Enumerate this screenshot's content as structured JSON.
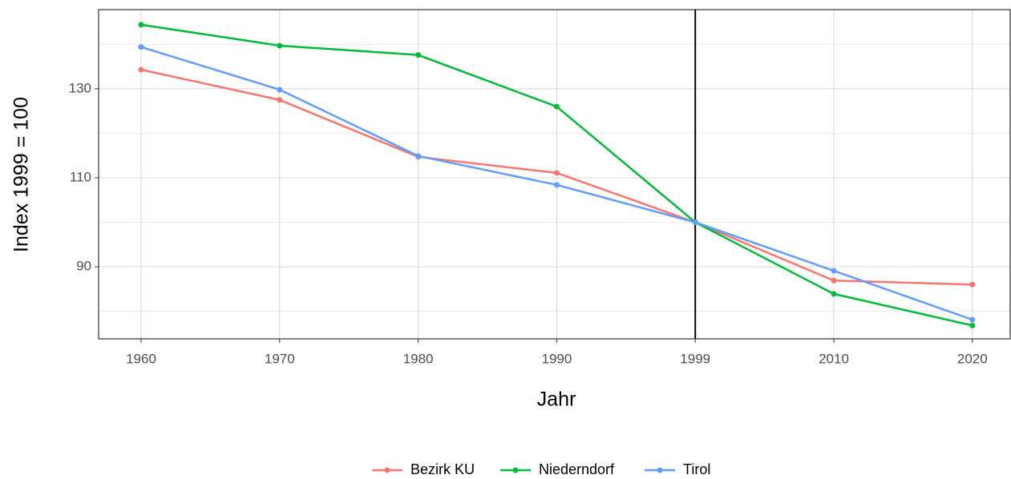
{
  "chart_data": {
    "type": "line",
    "x_label": "Jahr",
    "y_label": "Index 1999 = 100",
    "categories": [
      "1960",
      "1970",
      "1980",
      "1990",
      "1999",
      "2010",
      "2020"
    ],
    "series": [
      {
        "name": "Bezirk KU",
        "color": "#f8766d",
        "values": [
          134.3,
          127.5,
          114.7,
          111.1,
          100,
          86.9,
          86.0
        ]
      },
      {
        "name": "Niederndorf",
        "color": "#00ba38",
        "values": [
          144.4,
          139.7,
          137.6,
          126.0,
          100,
          83.9,
          76.8
        ]
      },
      {
        "name": "Tirol",
        "color": "#619cff",
        "values": [
          139.4,
          129.8,
          114.9,
          108.4,
          100,
          89.1,
          78.1
        ]
      }
    ],
    "ylim": [
      73.8,
      147.8
    ],
    "yticks": [
      90,
      110,
      130
    ],
    "y_minor_ticks": [
      80,
      100,
      120,
      140
    ],
    "vline": "1999",
    "grid": true,
    "legend": "bottom"
  }
}
